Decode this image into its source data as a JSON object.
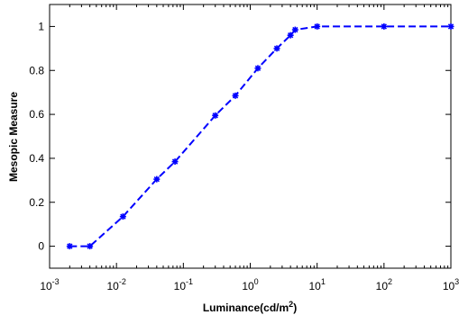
{
  "chart_data": {
    "type": "line",
    "title": "",
    "xlabel": "Luminance(cd/m",
    "xlabel_sup": "2",
    "xlabel_close": ")",
    "ylabel": "Mesopic Measure",
    "x_scale": "log",
    "xlim": [
      0.001,
      1000
    ],
    "ylim": [
      -0.1,
      1.1
    ],
    "grid": false,
    "legend": "none",
    "x_ticks": [
      {
        "value": 0.001,
        "base": "10",
        "exp": "-3"
      },
      {
        "value": 0.01,
        "base": "10",
        "exp": "-2"
      },
      {
        "value": 0.1,
        "base": "10",
        "exp": "-1"
      },
      {
        "value": 1,
        "base": "10",
        "exp": "0"
      },
      {
        "value": 10,
        "base": "10",
        "exp": "1"
      },
      {
        "value": 100,
        "base": "10",
        "exp": "2"
      },
      {
        "value": 1000,
        "base": "10",
        "exp": "3"
      }
    ],
    "y_ticks": [
      {
        "value": 0,
        "label": "0"
      },
      {
        "value": 0.2,
        "label": "0.2"
      },
      {
        "value": 0.4,
        "label": "0.4"
      },
      {
        "value": 0.6,
        "label": "0.6"
      },
      {
        "value": 0.8,
        "label": "0.8"
      },
      {
        "value": 1,
        "label": "1"
      }
    ],
    "series": [
      {
        "color": "#0000ff",
        "line_style": "dashed",
        "marker": "asterisk",
        "x": [
          0.002,
          0.004,
          0.0125,
          0.04,
          0.075,
          0.3,
          0.6,
          1.3,
          2.5,
          4,
          4.7,
          10,
          100,
          1000
        ],
        "y": [
          0.0,
          0.0,
          0.135,
          0.305,
          0.385,
          0.595,
          0.685,
          0.81,
          0.9,
          0.96,
          0.985,
          1.0,
          1.0,
          1.0
        ]
      }
    ]
  }
}
